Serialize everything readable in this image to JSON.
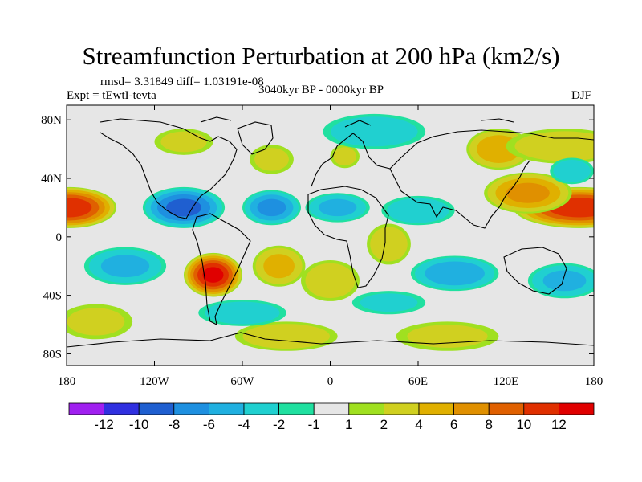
{
  "header": {
    "title": "Streamfunction Perturbation at 200 hPa (km2/s)",
    "stats": "rmsd= 3.31849 diff= 1.03191e-08",
    "experiment": "Expt = tEwtI-tevta",
    "period": "3040kyr BP - 0000kyr BP",
    "season": "DJF"
  },
  "chart_data": {
    "type": "heatmap",
    "title": "Streamfunction Perturbation at 200 hPa (km2/s)",
    "x_ticks": [
      {
        "value": -180,
        "label": "180"
      },
      {
        "value": -120,
        "label": "120W"
      },
      {
        "value": -60,
        "label": "60W"
      },
      {
        "value": 0,
        "label": "0"
      },
      {
        "value": 60,
        "label": "60E"
      },
      {
        "value": 120,
        "label": "120E"
      },
      {
        "value": 180,
        "label": "180"
      }
    ],
    "y_ticks": [
      {
        "value": 80,
        "label": "80N"
      },
      {
        "value": 40,
        "label": "40N"
      },
      {
        "value": 0,
        "label": "0"
      },
      {
        "value": -40,
        "label": "40S"
      },
      {
        "value": -80,
        "label": "80S"
      }
    ],
    "xlim": [
      -180,
      180
    ],
    "ylim": [
      -88,
      90
    ],
    "colorbar": {
      "levels": [
        -14,
        -12,
        -10,
        -8,
        -6,
        -4,
        -2,
        -1,
        1,
        2,
        4,
        6,
        8,
        10,
        12,
        14
      ],
      "labels": [
        "-12",
        "-10",
        "-8",
        "-6",
        "-4",
        "-2",
        "-1",
        "1",
        "2",
        "4",
        "6",
        "8",
        "10",
        "12"
      ],
      "colors": [
        "#a020f0",
        "#3030e0",
        "#1f5fd0",
        "#1e90e0",
        "#20b0e0",
        "#20d0d0",
        "#20e0a0",
        "#e6e6e6",
        "#a0e020",
        "#d0d020",
        "#e0b000",
        "#e09000",
        "#e06000",
        "#e03000",
        "#e00000"
      ]
    },
    "anomalies": [
      {
        "lon": -178,
        "lat": 20,
        "value": 11,
        "rx": 32,
        "ry": 14
      },
      {
        "lon": 170,
        "lat": 20,
        "value": 11,
        "rx": 45,
        "ry": 14
      },
      {
        "lon": 135,
        "lat": 30,
        "value": 6,
        "rx": 30,
        "ry": 14
      },
      {
        "lon": 115,
        "lat": 60,
        "value": 5,
        "rx": 22,
        "ry": 14
      },
      {
        "lon": 160,
        "lat": 62,
        "value": 3,
        "rx": 40,
        "ry": 12
      },
      {
        "lon": -80,
        "lat": -26,
        "value": 12,
        "rx": 20,
        "ry": 15
      },
      {
        "lon": -35,
        "lat": -20,
        "value": 4,
        "rx": 18,
        "ry": 14
      },
      {
        "lon": 0,
        "lat": -30,
        "value": 3,
        "rx": 20,
        "ry": 14
      },
      {
        "lon": 40,
        "lat": -5,
        "value": 3,
        "rx": 15,
        "ry": 14
      },
      {
        "lon": -40,
        "lat": 53,
        "value": 2,
        "rx": 15,
        "ry": 10
      },
      {
        "lon": -100,
        "lat": 65,
        "value": 2,
        "rx": 20,
        "ry": 9
      },
      {
        "lon": 10,
        "lat": 55,
        "value": 2,
        "rx": 10,
        "ry": 8
      },
      {
        "lon": -30,
        "lat": -68,
        "value": 3,
        "rx": 35,
        "ry": 10
      },
      {
        "lon": 80,
        "lat": -68,
        "value": 2,
        "rx": 35,
        "ry": 10
      },
      {
        "lon": -160,
        "lat": -58,
        "value": 2,
        "rx": 25,
        "ry": 12
      },
      {
        "lon": -100,
        "lat": 20,
        "value": -8,
        "rx": 28,
        "ry": 14
      },
      {
        "lon": -40,
        "lat": 20,
        "value": -6,
        "rx": 20,
        "ry": 12
      },
      {
        "lon": 5,
        "lat": 20,
        "value": -4,
        "rx": 22,
        "ry": 10
      },
      {
        "lon": 60,
        "lat": 18,
        "value": -3,
        "rx": 25,
        "ry": 10
      },
      {
        "lon": -140,
        "lat": -20,
        "value": -4,
        "rx": 28,
        "ry": 13
      },
      {
        "lon": 85,
        "lat": -25,
        "value": -5,
        "rx": 30,
        "ry": 12
      },
      {
        "lon": 160,
        "lat": -30,
        "value": -4,
        "rx": 25,
        "ry": 12
      },
      {
        "lon": -60,
        "lat": -52,
        "value": -3,
        "rx": 30,
        "ry": 9
      },
      {
        "lon": 30,
        "lat": 72,
        "value": -3,
        "rx": 35,
        "ry": 12
      },
      {
        "lon": 165,
        "lat": 45,
        "value": -3,
        "rx": 15,
        "ry": 9
      },
      {
        "lon": 40,
        "lat": -45,
        "value": -2,
        "rx": 25,
        "ry": 8
      }
    ]
  }
}
